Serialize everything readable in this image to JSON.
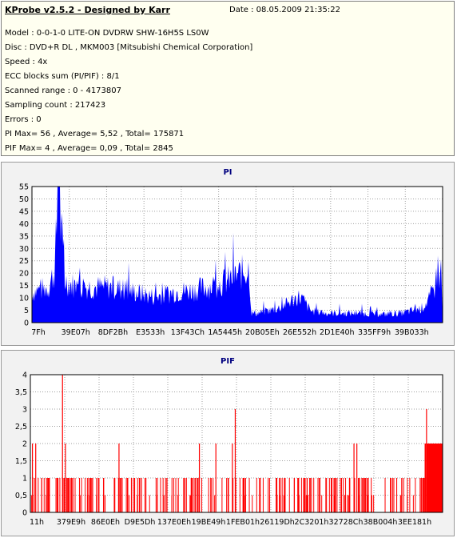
{
  "header": {
    "title": "KProbe v2.5.2 - Designed by Karr",
    "date": "Date : 08.05.2009 21:35:22",
    "lines": [
      "Model : 0-0-1-0 LITE-ON DVDRW SHW-16H5S  LS0W",
      "Disc : DVD+R DL , MKM003 [Mitsubishi Chemical Corporation]",
      "Speed : 4x",
      "ECC blocks sum (PI/PIF) : 8/1",
      "Scanned range : 0 - 4173807",
      "Sampling count : 217423",
      "Errors : 0",
      "PI Max= 56 , Average= 5,52 , Total= 175871",
      "PIF Max= 4 , Average= 0,09 , Total= 2845"
    ]
  },
  "chart_data": [
    {
      "type": "area",
      "title": "PI",
      "ylim": [
        0,
        55
      ],
      "yticks": [
        "0",
        "5",
        "10",
        "15",
        "20",
        "25",
        "30",
        "35",
        "40",
        "45",
        "50",
        "55"
      ],
      "xticks": [
        "7Fh",
        "39E07h",
        "8DF2Bh",
        "E3533h",
        "13F43Ch",
        "1A5445h",
        "20B05Eh",
        "26E552h",
        "2D1E40h",
        "335FF9h",
        "39B033h"
      ],
      "grid": true,
      "color": "#0000ff",
      "profile": [
        [
          0,
          13
        ],
        [
          0.02,
          14
        ],
        [
          0.04,
          15
        ],
        [
          0.055,
          22
        ],
        [
          0.06,
          38
        ],
        [
          0.065,
          50
        ],
        [
          0.07,
          42
        ],
        [
          0.075,
          30
        ],
        [
          0.08,
          18
        ],
        [
          0.1,
          16
        ],
        [
          0.15,
          15
        ],
        [
          0.2,
          15
        ],
        [
          0.25,
          13
        ],
        [
          0.3,
          11
        ],
        [
          0.35,
          13
        ],
        [
          0.4,
          14
        ],
        [
          0.45,
          16
        ],
        [
          0.48,
          18
        ],
        [
          0.5,
          20
        ],
        [
          0.52,
          22
        ],
        [
          0.53,
          23
        ],
        [
          0.535,
          4
        ],
        [
          0.55,
          4
        ],
        [
          0.6,
          6
        ],
        [
          0.63,
          9
        ],
        [
          0.65,
          11
        ],
        [
          0.66,
          10
        ],
        [
          0.68,
          5
        ],
        [
          0.72,
          4
        ],
        [
          0.8,
          4
        ],
        [
          0.85,
          3.5
        ],
        [
          0.9,
          4
        ],
        [
          0.95,
          6
        ],
        [
          0.97,
          10
        ],
        [
          0.985,
          16
        ],
        [
          0.99,
          24
        ],
        [
          1,
          14
        ]
      ]
    },
    {
      "type": "bar",
      "title": "PIF",
      "ylim": [
        0,
        4
      ],
      "yticks": [
        "0",
        "0,5",
        "1",
        "1,5",
        "2",
        "2,5",
        "3",
        "3,5",
        "4"
      ],
      "xticks": [
        "11h",
        "379E9h",
        "86E0Eh",
        "D9E5Dh",
        "137E0Eh",
        "19BE49h",
        "1FEB01h",
        "26119Dh",
        "2C3201h",
        "32728Ch",
        "38B004h",
        "3EE181h"
      ],
      "grid": true,
      "color": "#ff0000",
      "spikes": [
        [
          0.078,
          4
        ],
        [
          0.497,
          3
        ],
        [
          0.961,
          3
        ],
        [
          0.005,
          2
        ],
        [
          0.013,
          2
        ],
        [
          0.085,
          2
        ],
        [
          0.215,
          2
        ],
        [
          0.41,
          2
        ],
        [
          0.45,
          2
        ],
        [
          0.49,
          2
        ],
        [
          0.785,
          2
        ],
        [
          0.792,
          2
        ],
        [
          0.965,
          2
        ],
        [
          0.975,
          2
        ],
        [
          0.99,
          2
        ]
      ]
    }
  ]
}
